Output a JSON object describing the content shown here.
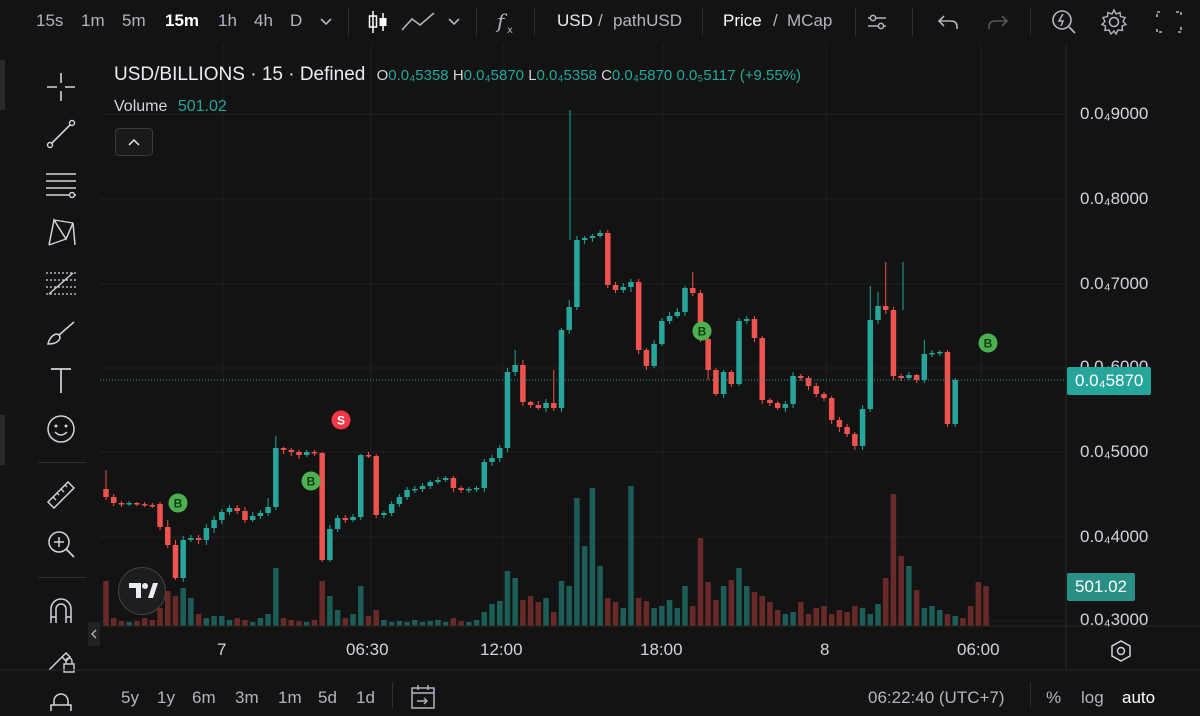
{
  "toolbar": {
    "intervals": [
      "15s",
      "1m",
      "5m",
      "15m",
      "1h",
      "4h",
      "D"
    ],
    "active_interval": "15m",
    "quote_currency": "USD",
    "pair_separator": "/",
    "path_label": "pathUSD",
    "price_label": "Price",
    "mcap_separator": "/",
    "mcap_label": "MCap"
  },
  "legend": {
    "symbol": "USD/BILLIONS · 15 · Defined",
    "o_key": "O",
    "o_val": "0.0₄5358",
    "h_key": "H",
    "h_val": "0.0₄5870",
    "l_key": "L",
    "l_val": "0.0₄5358",
    "c_key": "C",
    "c_val": "0.0₄5870",
    "change": "0.0₅5117 (+9.55%)",
    "volume_label": "Volume",
    "volume_value": "501.02"
  },
  "chart_data": {
    "type": "candlestick",
    "price_ticks": [
      "0.0₄9000",
      "0.0₄8000",
      "0.0₄7000",
      "0.0₄6000",
      "0.0₄5000",
      "0.0₄4000",
      "0.0₄3000"
    ],
    "time_ticks": [
      "7",
      "06:30",
      "12:00",
      "18:00",
      "8",
      "06:00"
    ],
    "last_price": "0.0₄5870",
    "last_volume": "501.02",
    "markers": [
      "B",
      "B",
      "S",
      "B",
      "B"
    ],
    "colors": {
      "up": "#26a69a",
      "down": "#ef5350",
      "buy_marker": "#4caf50",
      "sell_marker": "#f23645"
    }
  },
  "bottom": {
    "ranges": [
      "5y",
      "1y",
      "6m",
      "3m",
      "1m",
      "5d",
      "1d"
    ],
    "time": "06:22:40 (UTC+7)",
    "percent": "%",
    "log": "log",
    "auto": "auto"
  }
}
